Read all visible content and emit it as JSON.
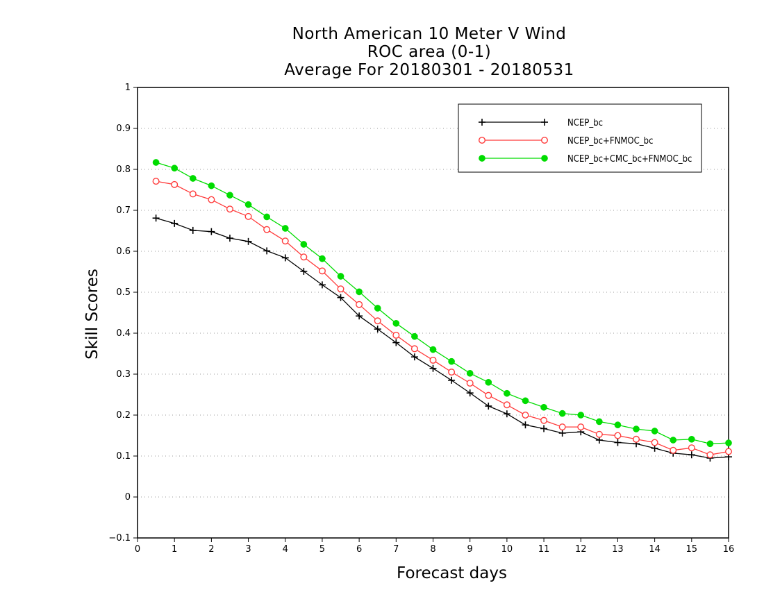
{
  "chart_data": {
    "type": "line",
    "title_lines": [
      "North American 10 Meter V Wind",
      "ROC area (0-1)",
      "Average For 20180301 - 20180531"
    ],
    "xlabel": "Forecast days",
    "ylabel": "Skill Scores",
    "xlim": [
      0,
      16
    ],
    "ylim": [
      -0.1,
      1
    ],
    "x_ticks": [
      0,
      1,
      2,
      3,
      4,
      5,
      6,
      7,
      8,
      9,
      10,
      11,
      12,
      13,
      14,
      15,
      16
    ],
    "y_ticks": [
      -0.1,
      0,
      0.1,
      0.2,
      0.3,
      0.4,
      0.5,
      0.6,
      0.7,
      0.8,
      0.9,
      1
    ],
    "y_tick_labels": [
      "−0.1",
      "0",
      "0.1",
      "0.2",
      "0.3",
      "0.4",
      "0.5",
      "0.6",
      "0.7",
      "0.8",
      "0.9",
      "1"
    ],
    "grid": "horizontal dotted",
    "legend_position": "top-right",
    "x": [
      0.5,
      1,
      1.5,
      2,
      2.5,
      3,
      3.5,
      4,
      4.5,
      5,
      5.5,
      6,
      6.5,
      7,
      7.5,
      8,
      8.5,
      9,
      9.5,
      10,
      10.5,
      11,
      11.5,
      12,
      12.5,
      13,
      13.5,
      14,
      14.5,
      15,
      15.5,
      16
    ],
    "series": [
      {
        "name": "NCEP_bc",
        "color": "#000000",
        "marker": "plus",
        "values": [
          0.681,
          0.668,
          0.651,
          0.648,
          0.632,
          0.624,
          0.601,
          0.584,
          0.551,
          0.518,
          0.487,
          0.442,
          0.41,
          0.377,
          0.342,
          0.314,
          0.285,
          0.254,
          0.222,
          0.203,
          0.176,
          0.167,
          0.156,
          0.159,
          0.139,
          0.133,
          0.13,
          0.119,
          0.107,
          0.103,
          0.095,
          0.098
        ]
      },
      {
        "name": "NCEP_bc+FNMOC_bc",
        "color": "#ff3b3b",
        "marker": "open-circle",
        "values": [
          0.771,
          0.763,
          0.74,
          0.726,
          0.703,
          0.685,
          0.653,
          0.625,
          0.586,
          0.552,
          0.508,
          0.47,
          0.43,
          0.395,
          0.362,
          0.334,
          0.305,
          0.278,
          0.248,
          0.225,
          0.2,
          0.187,
          0.171,
          0.171,
          0.153,
          0.15,
          0.141,
          0.133,
          0.114,
          0.12,
          0.103,
          0.111
        ]
      },
      {
        "name": "NCEP_bc+CMC_bc+FNMOC_bc",
        "color": "#00dc00",
        "marker": "filled-circle",
        "values": [
          0.817,
          0.803,
          0.778,
          0.76,
          0.737,
          0.714,
          0.684,
          0.656,
          0.617,
          0.582,
          0.539,
          0.501,
          0.461,
          0.424,
          0.392,
          0.36,
          0.331,
          0.302,
          0.28,
          0.253,
          0.235,
          0.219,
          0.204,
          0.2,
          0.184,
          0.176,
          0.166,
          0.161,
          0.139,
          0.141,
          0.13,
          0.132
        ]
      }
    ]
  }
}
